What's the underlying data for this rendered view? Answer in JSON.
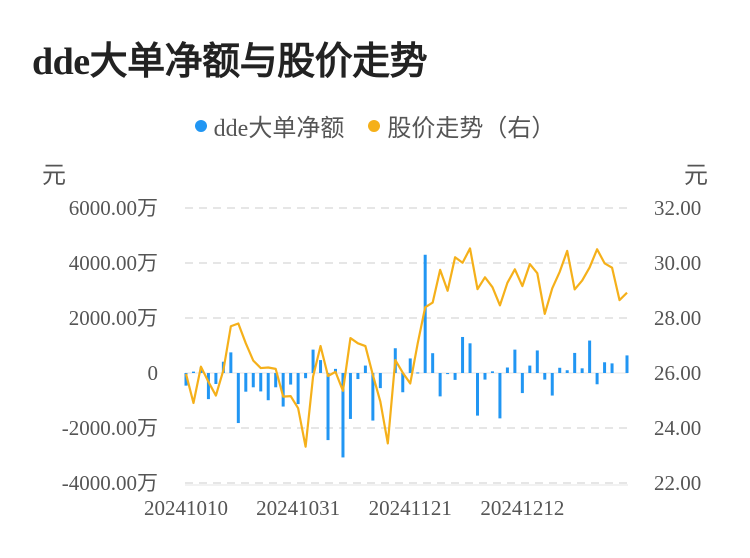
{
  "title": "dde大单净额与股价走势",
  "legend": [
    {
      "label": "dde大单净额",
      "color": "#2196f3"
    },
    {
      "label": "股价走势（右）",
      "color": "#f5b01a"
    }
  ],
  "chart_data": {
    "type": "bar+line",
    "title": "dde大单净额与股价走势",
    "left_unit": "元",
    "right_unit": "元",
    "left_ylim": [
      -4000,
      6000
    ],
    "right_ylim": [
      22,
      32
    ],
    "left_ticks": [
      {
        "v": 6000,
        "label": "6000.00万"
      },
      {
        "v": 4000,
        "label": "4000.00万"
      },
      {
        "v": 2000,
        "label": "2000.00万"
      },
      {
        "v": 0,
        "label": "0"
      },
      {
        "v": -2000,
        "label": "-2000.00万"
      },
      {
        "v": -4000,
        "label": "-4000.00万"
      }
    ],
    "right_ticks": [
      {
        "v": 32,
        "label": "32.00"
      },
      {
        "v": 30,
        "label": "30.00"
      },
      {
        "v": 28,
        "label": "28.00"
      },
      {
        "v": 26,
        "label": "26.00"
      },
      {
        "v": 24,
        "label": "24.00"
      },
      {
        "v": 22,
        "label": "22.00"
      }
    ],
    "x_ticks": [
      {
        "index": 0,
        "label": "20241010"
      },
      {
        "index": 15,
        "label": "20241031"
      },
      {
        "index": 30,
        "label": "20241121"
      },
      {
        "index": 45,
        "label": "20241212"
      }
    ],
    "grid": true,
    "series": [
      {
        "name": "dde大单净额",
        "type": "bar",
        "unit": "万元",
        "values": [
          -460,
          50,
          200,
          -950,
          -400,
          410,
          750,
          -1820,
          -680,
          -520,
          -670,
          -990,
          -520,
          -1220,
          -420,
          -1130,
          -190,
          850,
          470,
          -2440,
          150,
          -3070,
          -1670,
          -220,
          270,
          -1730,
          -550,
          0,
          900,
          -700,
          530,
          20,
          4300,
          720,
          -850,
          -40,
          -250,
          1310,
          1080,
          -1550,
          -240,
          60,
          -1650,
          200,
          850,
          -730,
          270,
          820,
          -240,
          -820,
          190,
          100,
          730,
          170,
          1180,
          -410,
          390,
          350,
          0,
          640
        ]
      },
      {
        "name": "股价走势（右）",
        "type": "line",
        "unit": "元",
        "values": [
          25.97,
          24.91,
          26.23,
          25.68,
          25.18,
          26.1,
          27.7,
          27.8,
          27.08,
          26.45,
          26.18,
          26.2,
          26.15,
          25.14,
          25.16,
          24.72,
          23.32,
          25.87,
          26.98,
          25.89,
          26.04,
          25.35,
          27.27,
          27.08,
          26.98,
          25.93,
          24.96,
          23.44,
          26.47,
          26.01,
          25.62,
          27.08,
          28.39,
          28.56,
          29.75,
          28.99,
          30.21,
          30.01,
          30.53,
          29.05,
          29.48,
          29.12,
          28.46,
          29.28,
          29.77,
          29.16,
          29.96,
          29.63,
          28.15,
          29.08,
          29.68,
          30.44,
          29.04,
          29.36,
          29.84,
          30.5,
          29.99,
          29.83,
          28.65,
          28.92
        ]
      }
    ]
  }
}
